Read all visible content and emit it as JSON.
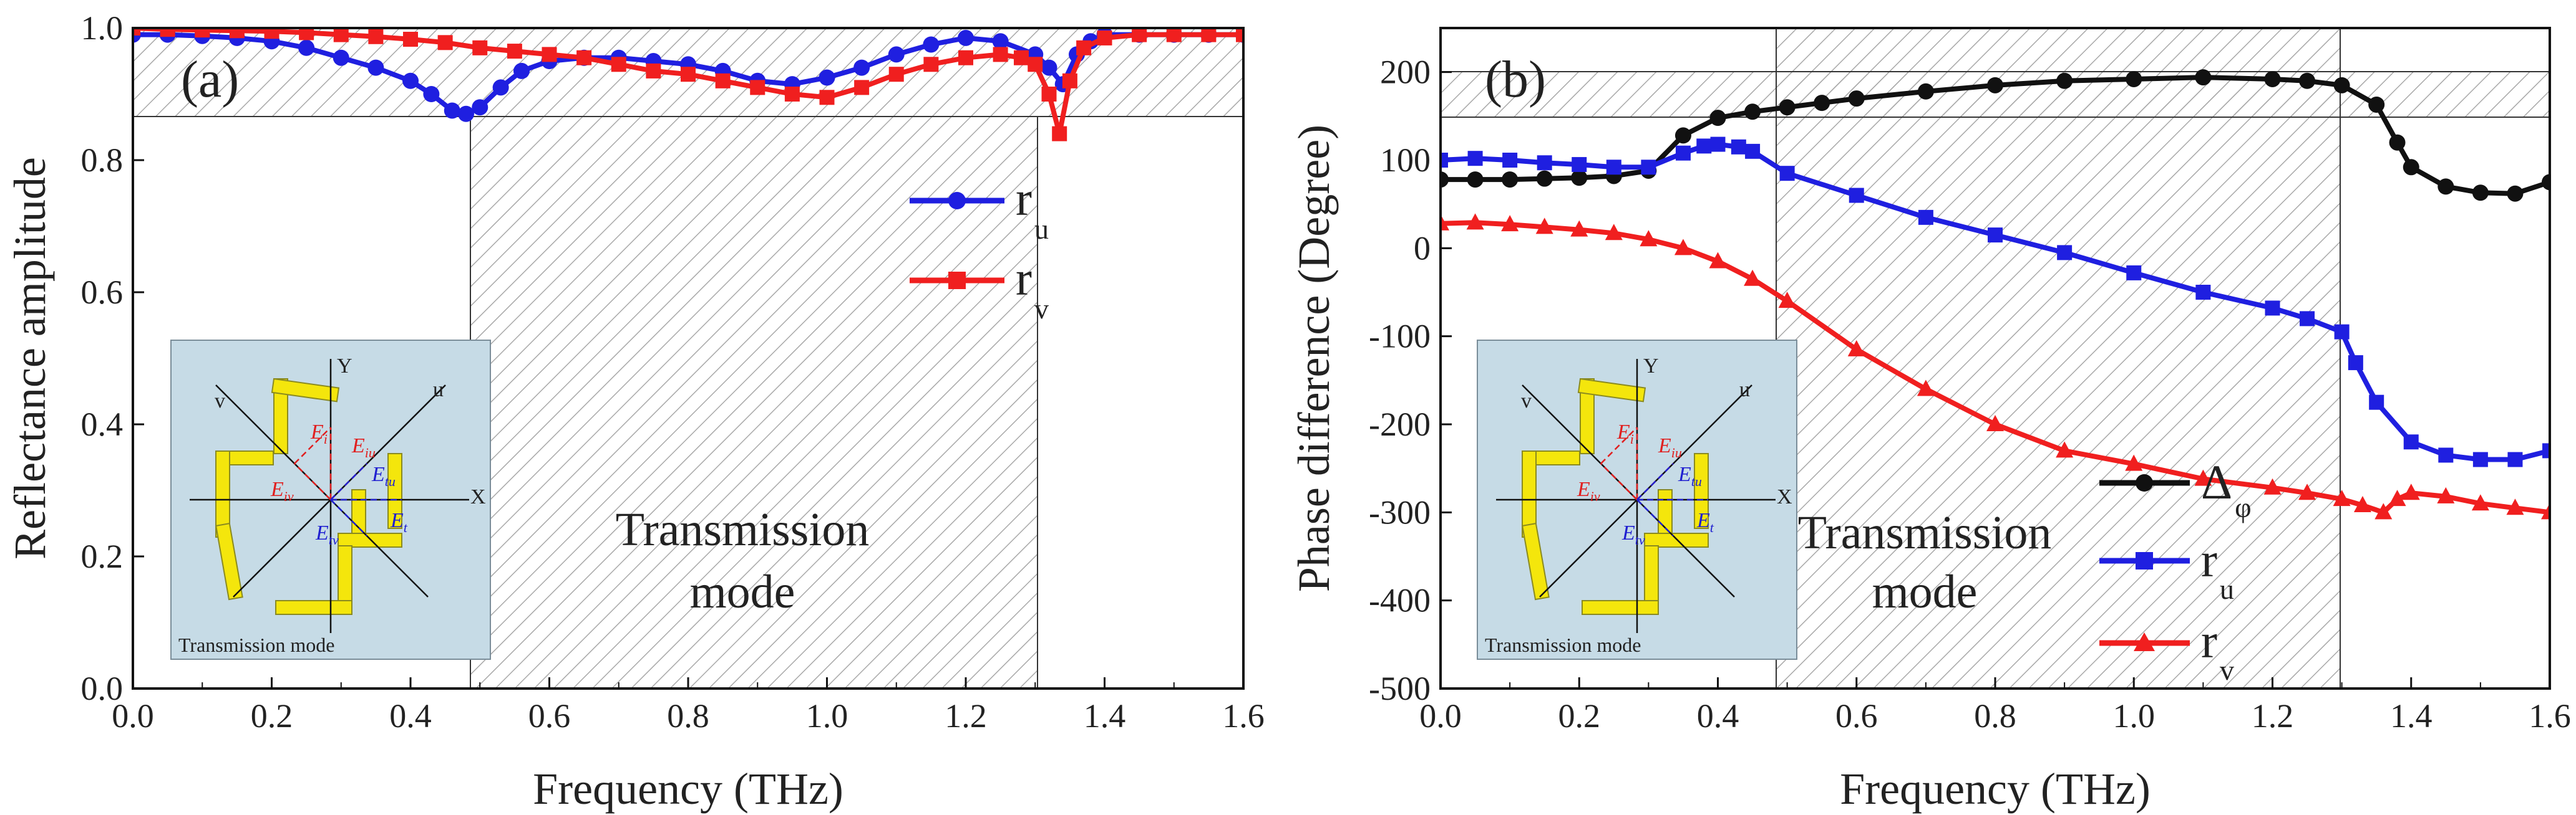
{
  "colors": {
    "blue": "#1f1fe0",
    "red": "#f01f1f",
    "black": "#111111",
    "inset_bg": "#c6dbe6",
    "yellow": "#f4e60c",
    "hatch": "#aaaaaa"
  },
  "chart_data": [
    {
      "id": "a",
      "type": "line",
      "panel_label": "(a)",
      "xlabel": "Frequency (THz)",
      "ylabel": "Reflectance amplitude",
      "xlim": [
        0,
        1.6
      ],
      "ylim": [
        0,
        1.0
      ],
      "xticks": [
        "0.0",
        "0.2",
        "0.4",
        "0.6",
        "0.8",
        "1.0",
        "1.2",
        "1.4",
        "1.6"
      ],
      "yticks": [
        "0.0",
        "0.2",
        "0.4",
        "0.6",
        "0.8",
        "1.0"
      ],
      "transmission_band": [
        0.48,
        1.3
      ],
      "reflection_band_y": [
        0.87,
        1.0
      ],
      "band_label_1": "Transmission",
      "band_label_2": "mode",
      "legend": [
        {
          "name": "r",
          "sub": "u",
          "color": "#1f1fe0",
          "marker": "circle"
        },
        {
          "name": "r",
          "sub": "v",
          "color": "#f01f1f",
          "marker": "square"
        }
      ],
      "series": [
        {
          "name": "r_u",
          "color": "#1f1fe0",
          "marker": "circle",
          "x": [
            0,
            0.05,
            0.1,
            0.15,
            0.2,
            0.25,
            0.3,
            0.35,
            0.4,
            0.43,
            0.46,
            0.48,
            0.5,
            0.53,
            0.56,
            0.6,
            0.65,
            0.7,
            0.75,
            0.8,
            0.85,
            0.9,
            0.95,
            1.0,
            1.05,
            1.1,
            1.15,
            1.2,
            1.25,
            1.3,
            1.32,
            1.34,
            1.36,
            1.38,
            1.4,
            1.45,
            1.5,
            1.55,
            1.6
          ],
          "y": [
            0.99,
            0.99,
            0.988,
            0.985,
            0.98,
            0.97,
            0.955,
            0.94,
            0.92,
            0.9,
            0.875,
            0.87,
            0.88,
            0.91,
            0.935,
            0.95,
            0.955,
            0.955,
            0.95,
            0.945,
            0.935,
            0.92,
            0.915,
            0.925,
            0.94,
            0.96,
            0.975,
            0.985,
            0.98,
            0.96,
            0.94,
            0.915,
            0.96,
            0.98,
            0.99,
            0.99,
            0.99,
            0.99,
            0.99
          ]
        },
        {
          "name": "r_v",
          "color": "#f01f1f",
          "marker": "square",
          "x": [
            0,
            0.05,
            0.1,
            0.15,
            0.2,
            0.25,
            0.3,
            0.35,
            0.4,
            0.45,
            0.5,
            0.55,
            0.6,
            0.65,
            0.7,
            0.75,
            0.8,
            0.85,
            0.9,
            0.95,
            1.0,
            1.05,
            1.1,
            1.15,
            1.2,
            1.25,
            1.28,
            1.3,
            1.32,
            1.335,
            1.35,
            1.37,
            1.4,
            1.45,
            1.5,
            1.55,
            1.6
          ],
          "y": [
            1.0,
            0.998,
            0.997,
            0.996,
            0.995,
            0.993,
            0.99,
            0.987,
            0.983,
            0.978,
            0.97,
            0.965,
            0.96,
            0.955,
            0.945,
            0.935,
            0.93,
            0.92,
            0.91,
            0.9,
            0.895,
            0.91,
            0.93,
            0.945,
            0.955,
            0.96,
            0.955,
            0.945,
            0.9,
            0.84,
            0.92,
            0.97,
            0.985,
            0.99,
            0.99,
            0.99,
            0.99
          ]
        }
      ]
    },
    {
      "id": "b",
      "type": "line",
      "panel_label": "(b)",
      "xlabel": "Frequency (THz)",
      "ylabel": "Phase difference (Degree)",
      "xlim": [
        0,
        1.6
      ],
      "ylim": [
        -500,
        250
      ],
      "xticks": [
        "0.0",
        "0.2",
        "0.4",
        "0.6",
        "0.8",
        "1.0",
        "1.2",
        "1.4",
        "1.6"
      ],
      "yticks": [
        "-500",
        "-400",
        "-300",
        "-200",
        "-100",
        "0",
        "100",
        "200"
      ],
      "transmission_band": [
        0.48,
        1.3
      ],
      "reflection_band_y": [
        150,
        200
      ],
      "band_label_1": "Transmission",
      "band_label_2": "mode",
      "legend": [
        {
          "name": "Δ",
          "sub": "φ",
          "color": "#111111",
          "marker": "circle"
        },
        {
          "name": "r",
          "sub": "u",
          "color": "#1f1fe0",
          "marker": "square"
        },
        {
          "name": "r",
          "sub": "v",
          "color": "#f01f1f",
          "marker": "triangle"
        }
      ],
      "series": [
        {
          "name": "delta_phi",
          "color": "#111111",
          "marker": "circle",
          "x": [
            0,
            0.05,
            0.1,
            0.15,
            0.2,
            0.25,
            0.3,
            0.35,
            0.4,
            0.45,
            0.5,
            0.55,
            0.6,
            0.7,
            0.8,
            0.9,
            1.0,
            1.1,
            1.2,
            1.25,
            1.3,
            1.35,
            1.38,
            1.4,
            1.45,
            1.5,
            1.55,
            1.6
          ],
          "y": [
            78,
            78,
            78,
            79,
            80,
            82,
            88,
            128,
            148,
            155,
            160,
            165,
            170,
            178,
            185,
            190,
            192,
            194,
            192,
            190,
            185,
            163,
            120,
            92,
            70,
            63,
            62,
            75
          ]
        },
        {
          "name": "r_u",
          "color": "#1f1fe0",
          "marker": "square",
          "x": [
            0,
            0.05,
            0.1,
            0.15,
            0.2,
            0.25,
            0.3,
            0.35,
            0.38,
            0.4,
            0.43,
            0.45,
            0.5,
            0.6,
            0.7,
            0.8,
            0.9,
            1.0,
            1.1,
            1.2,
            1.25,
            1.3,
            1.32,
            1.35,
            1.4,
            1.45,
            1.5,
            1.55,
            1.6
          ],
          "y": [
            100,
            102,
            100,
            97,
            95,
            92,
            92,
            108,
            116,
            118,
            115,
            110,
            85,
            60,
            35,
            15,
            -5,
            -28,
            -50,
            -68,
            -80,
            -95,
            -130,
            -175,
            -220,
            -235,
            -240,
            -240,
            -230
          ]
        },
        {
          "name": "r_v",
          "color": "#f01f1f",
          "marker": "triangle",
          "x": [
            0,
            0.05,
            0.1,
            0.15,
            0.2,
            0.25,
            0.3,
            0.35,
            0.4,
            0.45,
            0.5,
            0.6,
            0.7,
            0.8,
            0.9,
            1.0,
            1.1,
            1.2,
            1.25,
            1.3,
            1.33,
            1.36,
            1.38,
            1.4,
            1.45,
            1.5,
            1.55,
            1.6
          ],
          "y": [
            28,
            29,
            27,
            24,
            21,
            17,
            10,
            0,
            -15,
            -35,
            -60,
            -115,
            -160,
            -200,
            -230,
            -245,
            -262,
            -272,
            -278,
            -285,
            -292,
            -300,
            -285,
            -278,
            -282,
            -290,
            -295,
            -300
          ]
        }
      ]
    }
  ],
  "insets": [
    {
      "id": "inset-a",
      "caption": "Transmission mode",
      "axis_x": "X",
      "axis_y": "Y",
      "axis_u": "u",
      "axis_v": "v",
      "labels": {
        "ei": "E",
        "ei_sub": "i",
        "eiu": "E",
        "eiu_sub": "iu",
        "eiv": "E",
        "eiv_sub": "iv",
        "etu": "E",
        "etu_sub": "tu",
        "etv": "E",
        "etv_sub": "tv",
        "et": "E",
        "et_sub": "t"
      }
    },
    {
      "id": "inset-b",
      "caption": "Transmission mode",
      "axis_x": "X",
      "axis_y": "Y",
      "axis_u": "u",
      "axis_v": "v",
      "labels": {
        "ei": "E",
        "ei_sub": "i",
        "eiu": "E",
        "eiu_sub": "iu",
        "eiv": "E",
        "eiv_sub": "iv",
        "etu": "E",
        "etu_sub": "tu",
        "etv": "E",
        "etv_sub": "tv",
        "et": "E",
        "et_sub": "t"
      }
    }
  ]
}
